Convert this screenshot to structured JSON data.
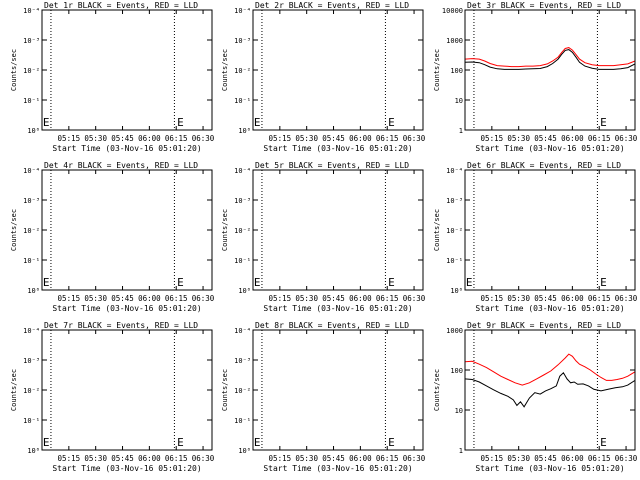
{
  "chart_data": [
    {
      "type": "line",
      "title": "Det 1r BLACK = Events, RED = LLD",
      "xlabel": "Start Time (03-Nov-16 05:01:20)",
      "ylabel": "Counts/sec",
      "y_scale": "log",
      "ylim": [
        1,
        10000
      ],
      "y_tick_labels": [
        "10⁰",
        "10⁻¹",
        "10⁻²",
        "10⁻³",
        "10⁻⁴"
      ],
      "x_tick_labels": [
        "05:15",
        "05:30",
        "05:45",
        "06:00",
        "06:15",
        "06:30"
      ],
      "x_ticks_min": [
        14,
        29,
        44,
        59,
        74,
        89
      ],
      "xlim_min": [
        -1,
        94
      ],
      "event_lines_min": [
        4,
        73
      ],
      "markers": [
        {
          "label": "E",
          "x_min": -0.5
        },
        {
          "label": "E",
          "x_min": 74.5
        }
      ],
      "series": []
    },
    {
      "type": "line",
      "title": "Det 2r BLACK = Events, RED = LLD",
      "xlabel": "Start Time (03-Nov-16 05:01:20)",
      "ylabel": "Counts/sec",
      "y_scale": "log",
      "ylim": [
        1,
        10000
      ],
      "y_tick_labels": [
        "10⁰",
        "10⁻¹",
        "10⁻²",
        "10⁻³",
        "10⁻⁴"
      ],
      "x_tick_labels": [
        "05:15",
        "05:30",
        "05:45",
        "06:00",
        "06:15",
        "06:30"
      ],
      "x_ticks_min": [
        14,
        29,
        44,
        59,
        74,
        89
      ],
      "xlim_min": [
        -1,
        94
      ],
      "event_lines_min": [
        4,
        73
      ],
      "markers": [
        {
          "label": "E",
          "x_min": -0.5
        },
        {
          "label": "E",
          "x_min": 74.5
        }
      ],
      "series": []
    },
    {
      "type": "line",
      "title": "Det 3r BLACK = Events, RED = LLD",
      "xlabel": "Start Time (03-Nov-16 05:01:20)",
      "ylabel": "Counts/sec",
      "y_scale": "log",
      "ylim": [
        1,
        10000
      ],
      "y_tick_labels": [
        "1",
        "10",
        "100",
        "1000",
        "10000"
      ],
      "x_tick_labels": [
        "05:15",
        "05:30",
        "05:45",
        "06:00",
        "06:15",
        "06:30"
      ],
      "x_ticks_min": [
        14,
        29,
        44,
        59,
        74,
        89
      ],
      "xlim_min": [
        -1,
        94
      ],
      "event_lines_min": [
        4,
        73
      ],
      "markers": [
        {
          "label": "E",
          "x_min": 74.5
        }
      ],
      "series": [
        {
          "color": "#ff0000",
          "x": [
            -1,
            3,
            7,
            10,
            13,
            17,
            21,
            25,
            29,
            33,
            37,
            41,
            45,
            48,
            51,
            53,
            55,
            57,
            59,
            61,
            63,
            66,
            70,
            74,
            78,
            82,
            86,
            90,
            94
          ],
          "y": [
            230,
            240,
            230,
            200,
            165,
            140,
            135,
            130,
            130,
            135,
            135,
            140,
            160,
            200,
            270,
            380,
            520,
            560,
            460,
            330,
            230,
            175,
            150,
            140,
            140,
            140,
            150,
            160,
            200
          ]
        },
        {
          "color": "#000000",
          "x": [
            -1,
            3,
            7,
            10,
            13,
            17,
            21,
            25,
            29,
            33,
            37,
            41,
            45,
            48,
            51,
            53,
            55,
            57,
            59,
            61,
            63,
            66,
            70,
            74,
            78,
            82,
            86,
            90,
            94
          ],
          "y": [
            180,
            185,
            175,
            150,
            125,
            110,
            105,
            105,
            105,
            108,
            110,
            112,
            130,
            165,
            230,
            330,
            450,
            480,
            390,
            270,
            180,
            135,
            115,
            105,
            105,
            105,
            110,
            120,
            160
          ]
        }
      ]
    },
    {
      "type": "line",
      "title": "Det 4r BLACK = Events, RED = LLD",
      "xlabel": "Start Time (03-Nov-16 05:01:20)",
      "ylabel": "Counts/sec",
      "y_scale": "log",
      "ylim": [
        1,
        10000
      ],
      "y_tick_labels": [
        "10⁰",
        "10⁻¹",
        "10⁻²",
        "10⁻³",
        "10⁻⁴"
      ],
      "x_tick_labels": [
        "05:15",
        "05:30",
        "05:45",
        "06:00",
        "06:15",
        "06:30"
      ],
      "x_ticks_min": [
        14,
        29,
        44,
        59,
        74,
        89
      ],
      "xlim_min": [
        -1,
        94
      ],
      "event_lines_min": [
        4,
        73
      ],
      "markers": [
        {
          "label": "E",
          "x_min": -0.5
        },
        {
          "label": "E",
          "x_min": 74.5
        }
      ],
      "series": []
    },
    {
      "type": "line",
      "title": "Det 5r BLACK = Events, RED = LLD",
      "xlabel": "Start Time (03-Nov-16 05:01:20)",
      "ylabel": "Counts/sec",
      "y_scale": "log",
      "ylim": [
        1,
        10000
      ],
      "y_tick_labels": [
        "10⁰",
        "10⁻¹",
        "10⁻²",
        "10⁻³",
        "10⁻⁴"
      ],
      "x_tick_labels": [
        "05:15",
        "05:30",
        "05:45",
        "06:00",
        "06:15",
        "06:30"
      ],
      "x_ticks_min": [
        14,
        29,
        44,
        59,
        74,
        89
      ],
      "xlim_min": [
        -1,
        94
      ],
      "event_lines_min": [
        4,
        73
      ],
      "markers": [
        {
          "label": "E",
          "x_min": -0.5
        },
        {
          "label": "E",
          "x_min": 74.5
        }
      ],
      "series": []
    },
    {
      "type": "line",
      "title": "Det 6r BLACK = Events, RED = LLD",
      "xlabel": "Start Time (03-Nov-16 05:01:20)",
      "ylabel": "Counts/sec",
      "y_scale": "log",
      "ylim": [
        1,
        10000
      ],
      "y_tick_labels": [
        "10⁰",
        "10⁻¹",
        "10⁻²",
        "10⁻³",
        "10⁻⁴"
      ],
      "x_tick_labels": [
        "05:15",
        "05:30",
        "05:45",
        "06:00",
        "06:15",
        "06:30"
      ],
      "x_ticks_min": [
        14,
        29,
        44,
        59,
        74,
        89
      ],
      "xlim_min": [
        -1,
        94
      ],
      "event_lines_min": [
        4,
        73
      ],
      "markers": [
        {
          "label": "E",
          "x_min": -0.5
        },
        {
          "label": "E",
          "x_min": 74.5
        }
      ],
      "series": []
    },
    {
      "type": "line",
      "title": "Det 7r BLACK = Events, RED = LLD",
      "xlabel": "Start Time (03-Nov-16 05:01:20)",
      "ylabel": "Counts/sec",
      "y_scale": "log",
      "ylim": [
        1,
        10000
      ],
      "y_tick_labels": [
        "10⁰",
        "10⁻¹",
        "10⁻²",
        "10⁻³",
        "10⁻⁴"
      ],
      "x_tick_labels": [
        "05:15",
        "05:30",
        "05:45",
        "06:00",
        "06:15",
        "06:30"
      ],
      "x_ticks_min": [
        14,
        29,
        44,
        59,
        74,
        89
      ],
      "xlim_min": [
        -1,
        94
      ],
      "event_lines_min": [
        4,
        73
      ],
      "markers": [
        {
          "label": "E",
          "x_min": -0.5
        },
        {
          "label": "E",
          "x_min": 74.5
        }
      ],
      "series": []
    },
    {
      "type": "line",
      "title": "Det 8r BLACK = Events, RED = LLD",
      "xlabel": "Start Time (03-Nov-16 05:01:20)",
      "ylabel": "Counts/sec",
      "y_scale": "log",
      "ylim": [
        1,
        10000
      ],
      "y_tick_labels": [
        "10⁰",
        "10⁻¹",
        "10⁻²",
        "10⁻³",
        "10⁻⁴"
      ],
      "x_tick_labels": [
        "05:15",
        "05:30",
        "05:45",
        "06:00",
        "06:15",
        "06:30"
      ],
      "x_ticks_min": [
        14,
        29,
        44,
        59,
        74,
        89
      ],
      "xlim_min": [
        -1,
        94
      ],
      "event_lines_min": [
        4,
        73
      ],
      "markers": [
        {
          "label": "E",
          "x_min": -0.5
        },
        {
          "label": "E",
          "x_min": 74.5
        }
      ],
      "series": []
    },
    {
      "type": "line",
      "title": "Det 9r BLACK = Events, RED = LLD",
      "xlabel": "Start Time (03-Nov-16 05:01:20)",
      "ylabel": "Counts/sec",
      "y_scale": "log",
      "ylim": [
        1,
        1000
      ],
      "y_tick_labels": [
        "1",
        "10",
        "100",
        "1000"
      ],
      "x_tick_labels": [
        "05:15",
        "05:30",
        "05:45",
        "06:00",
        "06:15",
        "06:30"
      ],
      "x_ticks_min": [
        14,
        29,
        44,
        59,
        74,
        89
      ],
      "xlim_min": [
        -1,
        94
      ],
      "event_lines_min": [
        4,
        73
      ],
      "markers": [
        {
          "label": "E",
          "x_min": 74.5
        }
      ],
      "series": [
        {
          "color": "#ff0000",
          "x": [
            -1,
            3,
            7,
            11,
            15,
            19,
            23,
            27,
            31,
            35,
            39,
            43,
            47,
            51,
            55,
            57,
            59,
            61,
            63,
            66,
            69,
            72,
            75,
            78,
            81,
            84,
            87,
            90,
            94
          ],
          "y": [
            160,
            165,
            140,
            115,
            90,
            70,
            58,
            48,
            42,
            48,
            60,
            75,
            95,
            135,
            200,
            250,
            220,
            170,
            140,
            120,
            100,
            80,
            65,
            55,
            55,
            58,
            62,
            70,
            90
          ]
        },
        {
          "color": "#000000",
          "x": [
            -1,
            3,
            7,
            11,
            15,
            19,
            23,
            26,
            28,
            30,
            32,
            35,
            38,
            41,
            44,
            47,
            50,
            52,
            54,
            56,
            58,
            60,
            62,
            65,
            68,
            71,
            75,
            79,
            83,
            87,
            90,
            94
          ],
          "y": [
            60,
            58,
            50,
            40,
            32,
            26,
            22,
            18,
            13,
            16,
            12,
            20,
            27,
            25,
            30,
            34,
            40,
            70,
            85,
            60,
            48,
            50,
            44,
            45,
            40,
            33,
            30,
            33,
            36,
            38,
            42,
            55
          ]
        }
      ]
    }
  ]
}
